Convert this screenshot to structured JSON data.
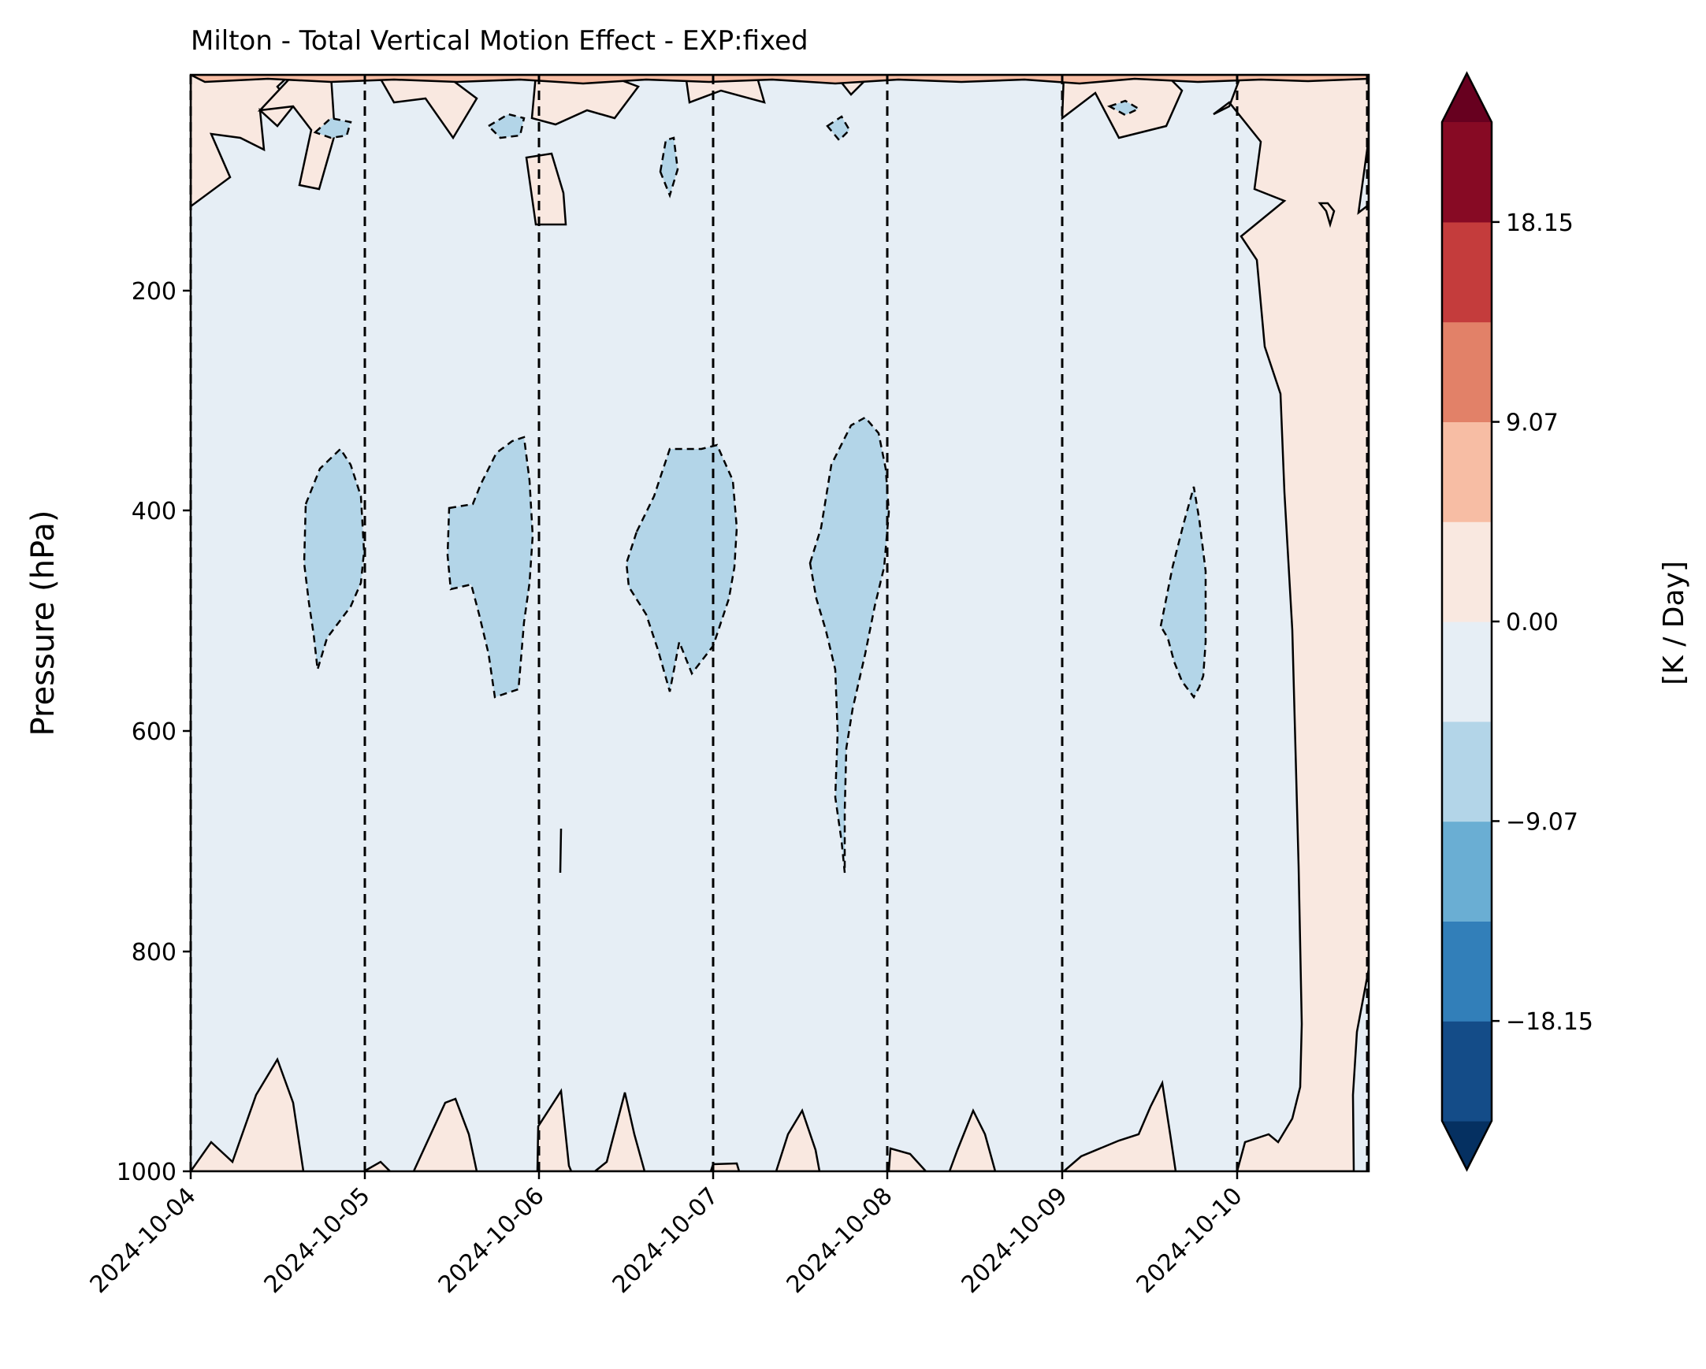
{
  "chart_data": {
    "type": "heatmap",
    "subtype": "filled pressure-time contour (Hovmoller)",
    "title": "Milton - Total Vertical Motion Effect - EXP:fixed",
    "xlabel": "",
    "ylabel": "Pressure (hPa)",
    "x_axis": {
      "type": "date",
      "range": [
        "2024-10-04",
        "2024-10-10T18:00"
      ],
      "ticks": [
        "2024-10-04",
        "2024-10-05",
        "2024-10-06",
        "2024-10-07",
        "2024-10-08",
        "2024-10-09",
        "2024-10-10"
      ],
      "day_boundaries_dashed": [
        "2024-10-04",
        "2024-10-05",
        "2024-10-06",
        "2024-10-07",
        "2024-10-08",
        "2024-10-09",
        "2024-10-10"
      ]
    },
    "y_axis": {
      "range": [
        0,
        1000
      ],
      "inverted": true,
      "ticks": [
        "200",
        "400",
        "600",
        "800",
        "1000"
      ]
    },
    "grid": false,
    "colorbar": {
      "label": "[K / Day]",
      "placement": "right",
      "extend": "both",
      "min": -22.69,
      "max": 22.69,
      "levels": 10,
      "tick_values": [
        18.15,
        9.07,
        0.0,
        -9.07,
        -18.15
      ],
      "tick_labels": [
        "18.15",
        "9.07",
        "0.00",
        "−9.07",
        "−18.15"
      ],
      "colors": [
        "#053061",
        "#144c88",
        "#327fb9",
        "#6aaed3",
        "#b3d5e8",
        "#e6eef5",
        "#f9e8e0",
        "#f7bda4",
        "#e28168",
        "#c43c3c",
        "#870a24",
        "#67001f"
      ]
    },
    "fields": {
      "background_value_range": [
        -4.54,
        0
      ],
      "background_color": "#e6eef5",
      "positive_color": "#f9e8e0",
      "negative_color": "#b3d5e8",
      "positive_regions": [
        {
          "day": "2024-10-04",
          "pressure_range": [
            0,
            140
          ],
          "max": 2
        },
        {
          "day": "2024-10-04",
          "pressure_range": [
            900,
            1000
          ],
          "max": 2
        },
        {
          "day": "2024-10-05",
          "pressure_range": [
            935,
            1000
          ],
          "max": 2
        },
        {
          "day": "2024-10-06",
          "pressure_range": [
            930,
            1000
          ],
          "max": 2
        },
        {
          "day": "2024-10-07",
          "pressure_range": [
            945,
            1000
          ],
          "max": 2
        },
        {
          "day": "2024-10-08",
          "pressure_range": [
            950,
            1000
          ],
          "max": 2
        },
        {
          "day": "2024-10-09",
          "pressure_range": [
            920,
            1000
          ],
          "max": 2
        },
        {
          "day": "2024-10-10",
          "pressure_range": [
            0,
            1000
          ],
          "max": 4
        }
      ],
      "negative_regions": [
        {
          "day": "2024-10-04",
          "pressure_range": [
            345,
            545
          ],
          "min": -6
        },
        {
          "day": "2024-10-05",
          "pressure_range": [
            335,
            570
          ],
          "min": -6
        },
        {
          "day": "2024-10-06",
          "pressure_range": [
            340,
            560
          ],
          "min": -6
        },
        {
          "day": "2024-10-07",
          "pressure_range": [
            315,
            730
          ],
          "min": -6
        },
        {
          "day": "2024-10-09",
          "pressure_range": [
            378,
            565
          ],
          "min": -6
        }
      ]
    }
  }
}
